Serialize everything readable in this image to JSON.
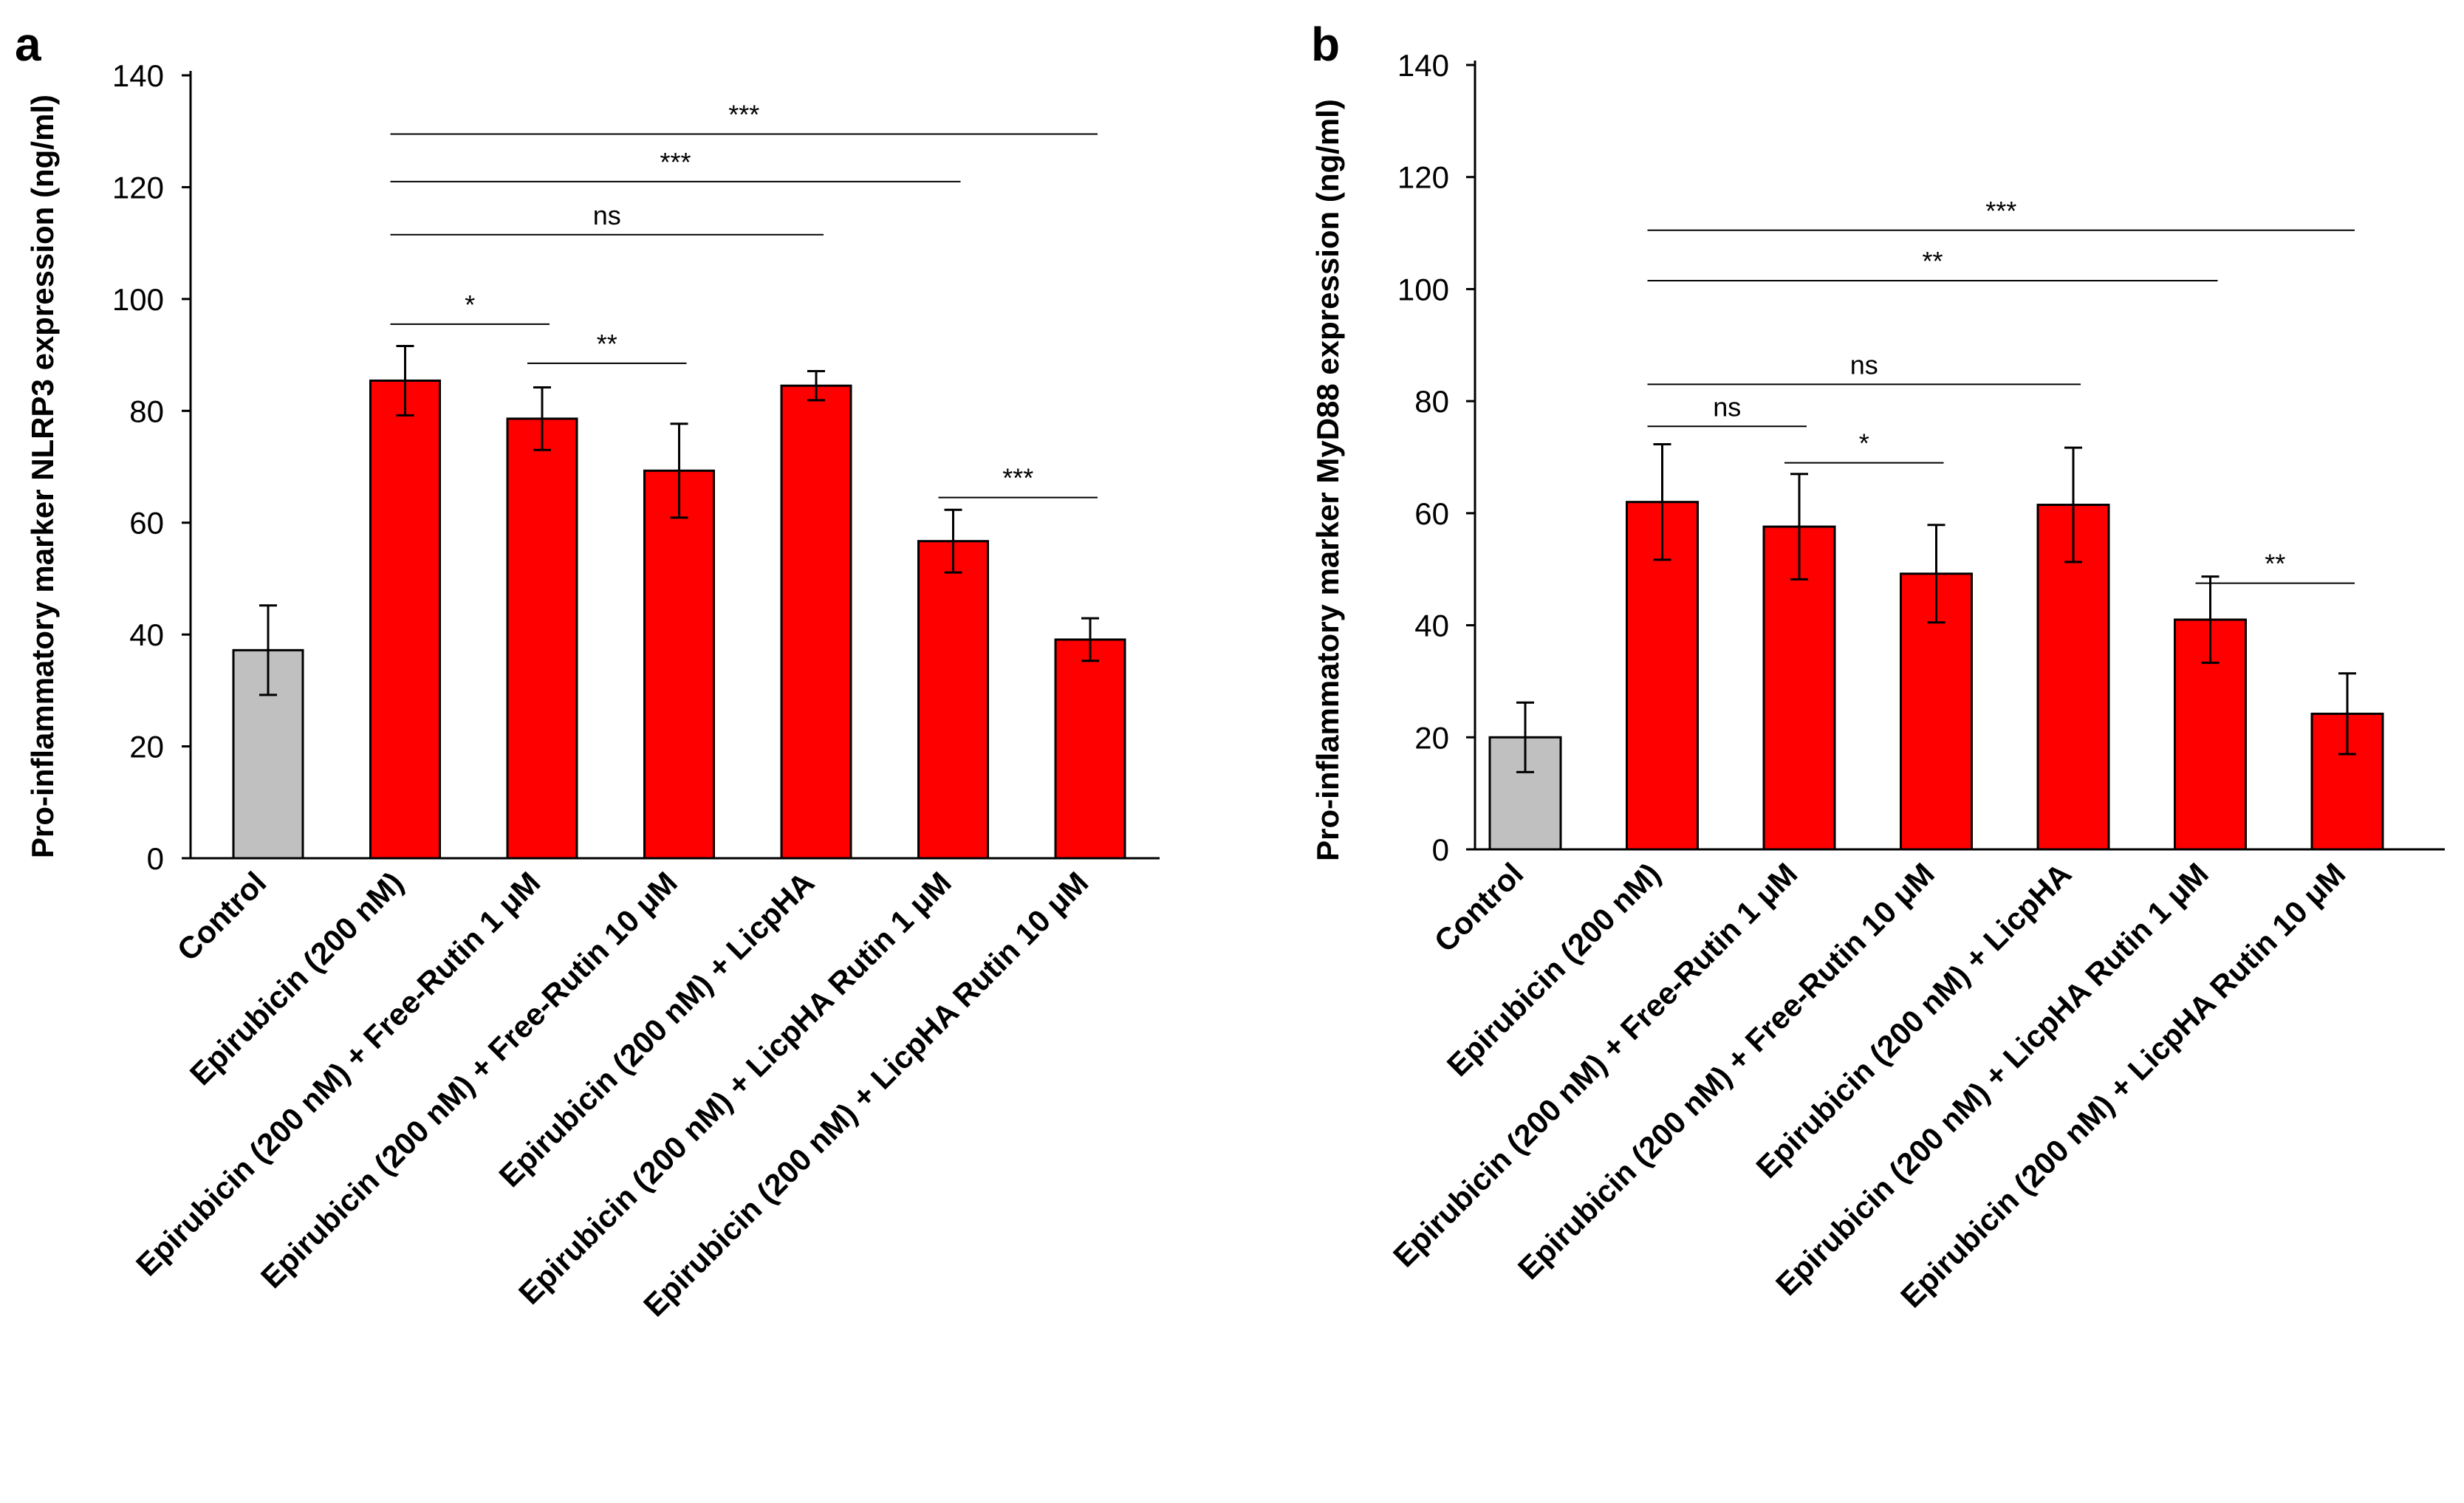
{
  "colors": {
    "control": "#c0c0c0",
    "treatment": "#ff0000",
    "outline": "#000000"
  },
  "chart_data": [
    {
      "panel": "a",
      "type": "bar",
      "ylabel": "Pro-inflammatory  marker NLRP3  expression (ng/ml)",
      "ylim": [
        0,
        140
      ],
      "yticks": [
        0,
        20,
        40,
        60,
        80,
        100,
        120,
        140
      ],
      "categories": [
        "Control",
        "Epirubicin (200 nM)",
        "Epirubicin (200 nM) + Free-Rutin 1 μM",
        "Epirubicin (200 nM) + Free-Rutin 10 μM",
        "Epirubicin (200 nM) + LicpHA",
        "Epirubicin (200 nM) + LicpHA Rutin 1 μM",
        "Epirubicin (200 nM) + LicpHA Rutin 10 μM"
      ],
      "values": [
        37.2,
        85.4,
        78.6,
        69.3,
        84.5,
        56.7,
        39.1
      ],
      "errors": [
        8,
        6.2,
        5.6,
        8.4,
        2.6,
        5.6,
        3.8
      ],
      "bar_colors": [
        "control",
        "treatment",
        "treatment",
        "treatment",
        "treatment",
        "treatment",
        "treatment"
      ],
      "significance": [
        {
          "label": "***",
          "from": 1,
          "to": 6,
          "y": 129.5
        },
        {
          "label": "***",
          "from": 1,
          "to": 5,
          "y": 121
        },
        {
          "label": "ns",
          "from": 1,
          "to": 4,
          "y": 111.5
        },
        {
          "label": "*",
          "from": 1,
          "to": 2,
          "y": 95.5
        },
        {
          "label": "**",
          "from": 2,
          "to": 3,
          "y": 88.5
        },
        {
          "label": "***",
          "from": 5,
          "to": 6,
          "y": 64.5
        }
      ]
    },
    {
      "panel": "b",
      "type": "bar",
      "ylabel": "Pro-inflammatory  marker MyD88 expression (ng/ml)",
      "ylim": [
        0,
        140
      ],
      "yticks": [
        0,
        20,
        40,
        60,
        80,
        100,
        120,
        140
      ],
      "categories": [
        "Control",
        "Epirubicin (200 nM)",
        "Epirubicin (200 nM) + Free-Rutin 1 μM",
        "Epirubicin (200 nM) + Free-Rutin 10 μM",
        "Epirubicin (200 nM) + LicpHA",
        "Epirubicin (200 nM) + LicpHA Rutin 1 μM",
        "Epirubicin (200 nM) + LicpHA Rutin 10 μM"
      ],
      "values": [
        20,
        62,
        57.6,
        49.2,
        61.5,
        41,
        24.2
      ],
      "errors": [
        6.2,
        10.3,
        9.4,
        8.7,
        10.2,
        7.7,
        7.2
      ],
      "bar_colors": [
        "control",
        "treatment",
        "treatment",
        "treatment",
        "treatment",
        "treatment",
        "treatment"
      ],
      "significance": [
        {
          "label": "***",
          "from": 1,
          "to": 6,
          "y": 110.5
        },
        {
          "label": "**",
          "from": 1,
          "to": 5,
          "y": 101.5
        },
        {
          "label": "ns",
          "from": 1,
          "to": 4,
          "y": 83
        },
        {
          "label": "ns",
          "from": 1,
          "to": 2,
          "y": 75.5
        },
        {
          "label": "*",
          "from": 2,
          "to": 3,
          "y": 69
        },
        {
          "label": "**",
          "from": 5,
          "to": 6,
          "y": 47.5
        }
      ]
    }
  ]
}
